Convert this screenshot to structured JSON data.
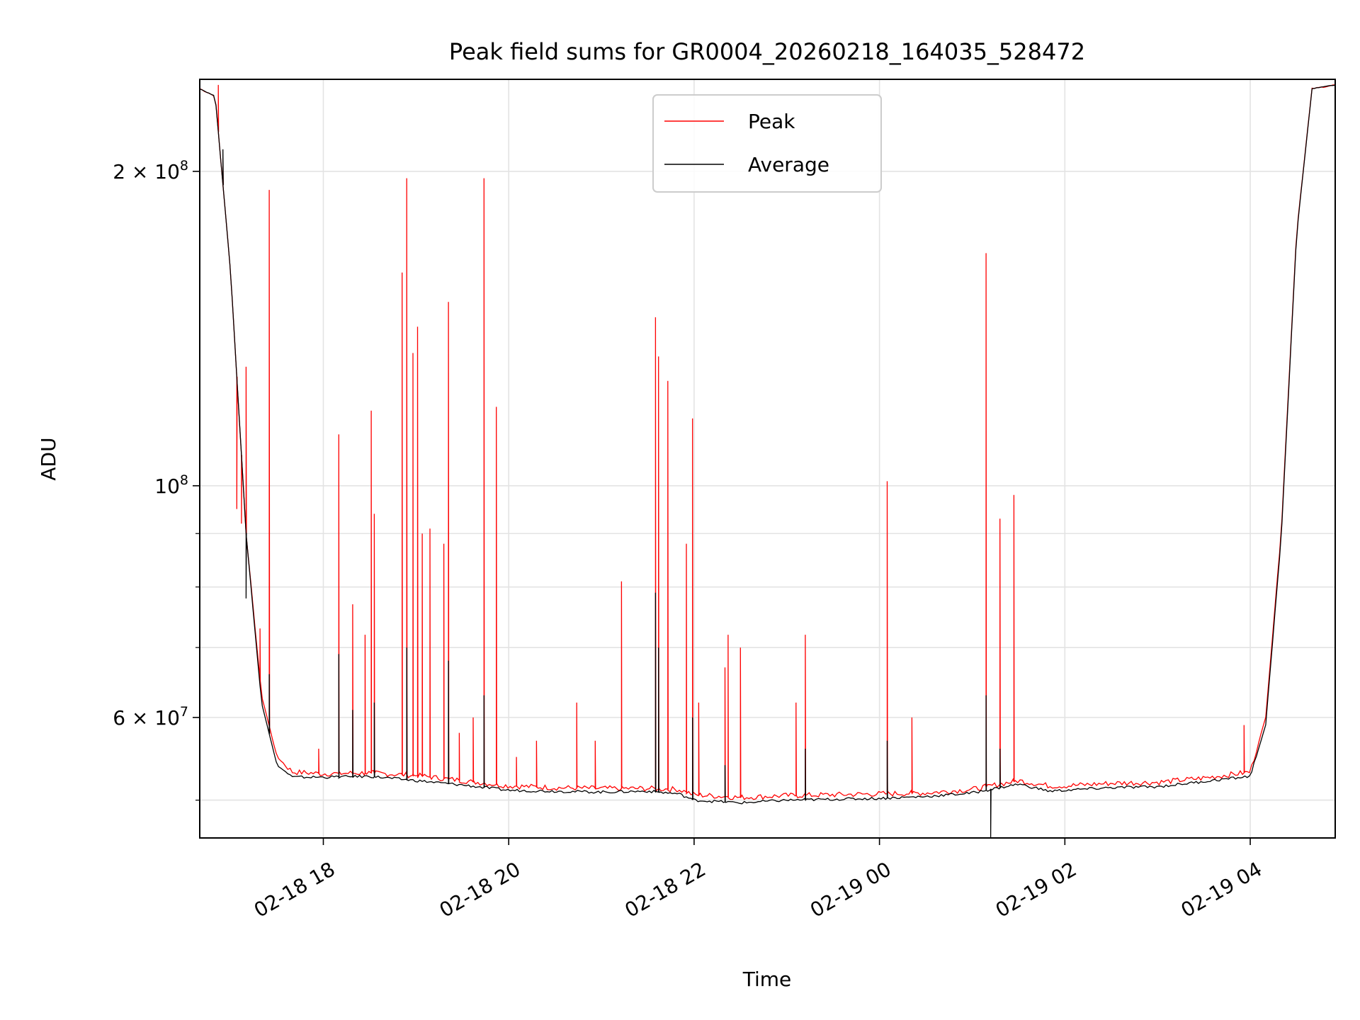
{
  "chart_data": {
    "type": "line",
    "title": "Peak field sums for GR0004_20260218_164035_528472",
    "xlabel": "Time",
    "ylabel": "ADU",
    "yscale": "log",
    "grid": true,
    "legend_position": "top-center",
    "x_range": [
      "2026-02-18 16:40",
      "2026-02-19 04:55"
    ],
    "y_range": [
      46000000,
      245000000
    ],
    "x_tick_labels": [
      "02-18 18",
      "02-18 20",
      "02-18 22",
      "02-19 00",
      "02-19 02",
      "02-19 04"
    ],
    "x_tick_times": [
      "2026-02-18 18:00",
      "2026-02-18 20:00",
      "2026-02-18 22:00",
      "2026-02-19 00:00",
      "2026-02-19 02:00",
      "2026-02-19 04:00"
    ],
    "y_major_ticks": [
      {
        "value": 60000000,
        "mantissa": "6",
        "base": "10",
        "exp": "7"
      },
      {
        "value": 100000000,
        "mantissa": "",
        "base": "10",
        "exp": "8"
      },
      {
        "value": 200000000,
        "mantissa": "2",
        "base": "10",
        "exp": "8"
      }
    ],
    "y_minor_ticks": [
      50000000,
      70000000,
      80000000,
      90000000
    ],
    "series": [
      {
        "name": "Peak",
        "color": "#ff0000",
        "baseline": [
          [
            "16:40",
            240000000
          ],
          [
            "16:50",
            236000000
          ],
          [
            "17:00",
            160000000
          ],
          [
            "17:10",
            90000000
          ],
          [
            "17:20",
            63000000
          ],
          [
            "17:30",
            55000000
          ],
          [
            "17:40",
            53200000
          ],
          [
            "18:00",
            53000000
          ],
          [
            "18:30",
            53100000
          ],
          [
            "19:00",
            52800000
          ],
          [
            "19:30",
            52200000
          ],
          [
            "20:00",
            51600000
          ],
          [
            "20:30",
            51400000
          ],
          [
            "21:00",
            51300000
          ],
          [
            "21:30",
            51300000
          ],
          [
            "21:50",
            51200000
          ],
          [
            "22:00",
            50600000
          ],
          [
            "22:30",
            50300000
          ],
          [
            "23:00",
            50500000
          ],
          [
            "23:30",
            50600000
          ],
          [
            "00:00",
            50700000
          ],
          [
            "00:30",
            50800000
          ],
          [
            "01:00",
            51200000
          ],
          [
            "01:30",
            52200000
          ],
          [
            "01:50",
            51600000
          ],
          [
            "02:00",
            51600000
          ],
          [
            "02:30",
            51900000
          ],
          [
            "03:00",
            52000000
          ],
          [
            "03:30",
            52500000
          ],
          [
            "04:00",
            53200000
          ],
          [
            "04:10",
            60000000
          ],
          [
            "04:20",
            90000000
          ],
          [
            "04:30",
            175000000
          ],
          [
            "04:40",
            240000000
          ],
          [
            "04:55",
            242000000
          ]
        ],
        "spikes": [
          [
            "16:52",
            242000000
          ],
          [
            "16:55",
            205000000
          ],
          [
            "17:04",
            95000000
          ],
          [
            "17:07",
            92000000
          ],
          [
            "17:10",
            130000000
          ],
          [
            "17:19",
            73000000
          ],
          [
            "17:25",
            192000000
          ],
          [
            "17:57",
            56000000
          ],
          [
            "18:10",
            112000000
          ],
          [
            "18:19",
            77000000
          ],
          [
            "18:27",
            72000000
          ],
          [
            "18:31",
            118000000
          ],
          [
            "18:33",
            94000000
          ],
          [
            "18:51",
            160000000
          ],
          [
            "18:54",
            197000000
          ],
          [
            "18:58",
            134000000
          ],
          [
            "19:01",
            142000000
          ],
          [
            "19:04",
            90000000
          ],
          [
            "19:09",
            91000000
          ],
          [
            "19:18",
            88000000
          ],
          [
            "19:21",
            150000000
          ],
          [
            "19:28",
            58000000
          ],
          [
            "19:37",
            60000000
          ],
          [
            "19:44",
            197000000
          ],
          [
            "19:52",
            119000000
          ],
          [
            "20:05",
            55000000
          ],
          [
            "20:18",
            57000000
          ],
          [
            "20:44",
            62000000
          ],
          [
            "20:56",
            57000000
          ],
          [
            "21:13",
            81000000
          ],
          [
            "21:35",
            145000000
          ],
          [
            "21:37",
            133000000
          ],
          [
            "21:43",
            126000000
          ],
          [
            "21:55",
            88000000
          ],
          [
            "21:59",
            116000000
          ],
          [
            "22:03",
            62000000
          ],
          [
            "22:20",
            67000000
          ],
          [
            "22:22",
            72000000
          ],
          [
            "22:30",
            70000000
          ],
          [
            "23:06",
            62000000
          ],
          [
            "23:12",
            72000000
          ],
          [
            "00:05",
            101000000
          ],
          [
            "00:21",
            60000000
          ],
          [
            "01:09",
            167000000
          ],
          [
            "01:18",
            93000000
          ],
          [
            "01:27",
            98000000
          ],
          [
            "03:56",
            59000000
          ]
        ]
      },
      {
        "name": "Average",
        "color": "#000000",
        "baseline": [
          [
            "16:40",
            240000000
          ],
          [
            "16:50",
            236000000
          ],
          [
            "17:00",
            160000000
          ],
          [
            "17:10",
            90000000
          ],
          [
            "17:20",
            62000000
          ],
          [
            "17:30",
            54000000
          ],
          [
            "17:40",
            52600000
          ],
          [
            "18:00",
            52600000
          ],
          [
            "18:30",
            52700000
          ],
          [
            "19:00",
            52200000
          ],
          [
            "19:30",
            51700000
          ],
          [
            "20:00",
            51100000
          ],
          [
            "20:30",
            51000000
          ],
          [
            "21:00",
            50900000
          ],
          [
            "21:30",
            51000000
          ],
          [
            "21:50",
            50700000
          ],
          [
            "22:00",
            50000000
          ],
          [
            "22:30",
            49700000
          ],
          [
            "23:00",
            50000000
          ],
          [
            "23:30",
            50100000
          ],
          [
            "00:00",
            50200000
          ],
          [
            "00:30",
            50400000
          ],
          [
            "01:00",
            50800000
          ],
          [
            "01:30",
            51800000
          ],
          [
            "01:50",
            51000000
          ],
          [
            "02:00",
            51100000
          ],
          [
            "02:30",
            51400000
          ],
          [
            "03:00",
            51500000
          ],
          [
            "03:30",
            52100000
          ],
          [
            "04:00",
            52700000
          ],
          [
            "04:10",
            59000000
          ],
          [
            "04:20",
            89000000
          ],
          [
            "04:30",
            174000000
          ],
          [
            "04:40",
            240000000
          ],
          [
            "04:55",
            242000000
          ]
        ],
        "spikes": [
          [
            "16:55",
            210000000
          ],
          [
            "17:10",
            78000000
          ],
          [
            "17:25",
            66000000
          ],
          [
            "18:10",
            69000000
          ],
          [
            "18:19",
            61000000
          ],
          [
            "18:33",
            62000000
          ],
          [
            "18:54",
            70000000
          ],
          [
            "19:21",
            68000000
          ],
          [
            "19:44",
            63000000
          ],
          [
            "21:35",
            79000000
          ],
          [
            "21:37",
            70000000
          ],
          [
            "21:59",
            60000000
          ],
          [
            "22:20",
            54000000
          ],
          [
            "23:12",
            56000000
          ],
          [
            "00:05",
            57000000
          ],
          [
            "01:09",
            63000000
          ],
          [
            "01:18",
            56000000
          ],
          [
            "01:12",
            46000000
          ]
        ]
      }
    ]
  }
}
